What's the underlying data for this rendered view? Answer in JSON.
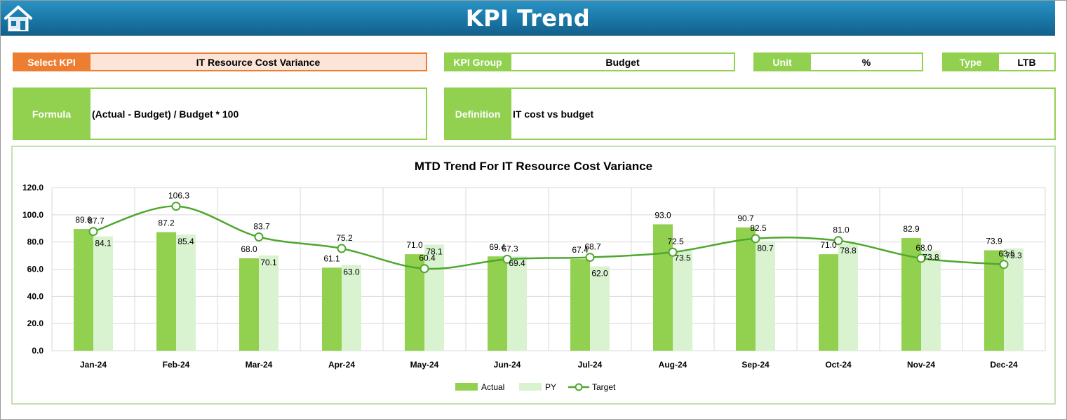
{
  "header": {
    "title": "KPI Trend",
    "home_icon": "home-icon"
  },
  "filters": {
    "select_kpi_label": "Select KPI",
    "select_kpi_value": "IT Resource Cost Variance",
    "kpi_group_label": "KPI Group",
    "kpi_group_value": "Budget",
    "unit_label": "Unit",
    "unit_value": "%",
    "type_label": "Type",
    "type_value": "LTB"
  },
  "info": {
    "formula_label": "Formula",
    "formula_value": "(Actual - Budget) / Budget * 100",
    "definition_label": "Definition",
    "definition_value": "IT cost vs budget"
  },
  "colors": {
    "actual": "#92d050",
    "py": "#d9f2d0",
    "target": "#4ea72e",
    "header": "#1a76a6",
    "select": "#ed7d31"
  },
  "chart_data": {
    "type": "bar",
    "title": "MTD Trend For IT Resource Cost Variance",
    "categories": [
      "Jan-24",
      "Feb-24",
      "Mar-24",
      "Apr-24",
      "May-24",
      "Jun-24",
      "Jul-24",
      "Aug-24",
      "Sep-24",
      "Oct-24",
      "Nov-24",
      "Dec-24"
    ],
    "series": [
      {
        "name": "Actual",
        "type": "bar",
        "values": [
          89.6,
          87.2,
          68.0,
          61.1,
          71.0,
          69.4,
          67.4,
          93.0,
          90.7,
          71.0,
          82.9,
          73.9
        ]
      },
      {
        "name": "PY",
        "type": "bar",
        "values": [
          84.1,
          85.4,
          70.1,
          63.0,
          78.1,
          69.4,
          62.0,
          73.5,
          80.7,
          78.8,
          73.8,
          75.3
        ]
      },
      {
        "name": "Target",
        "type": "line",
        "values": [
          87.7,
          106.3,
          83.7,
          75.2,
          60.4,
          67.3,
          68.7,
          72.5,
          82.5,
          81.0,
          68.0,
          63.5
        ]
      }
    ],
    "y_ticks": [
      "0.0",
      "20.0",
      "40.0",
      "60.0",
      "80.0",
      "100.0",
      "120.0"
    ],
    "ylim": [
      0,
      120
    ],
    "grid": true,
    "legend": "bottom"
  }
}
